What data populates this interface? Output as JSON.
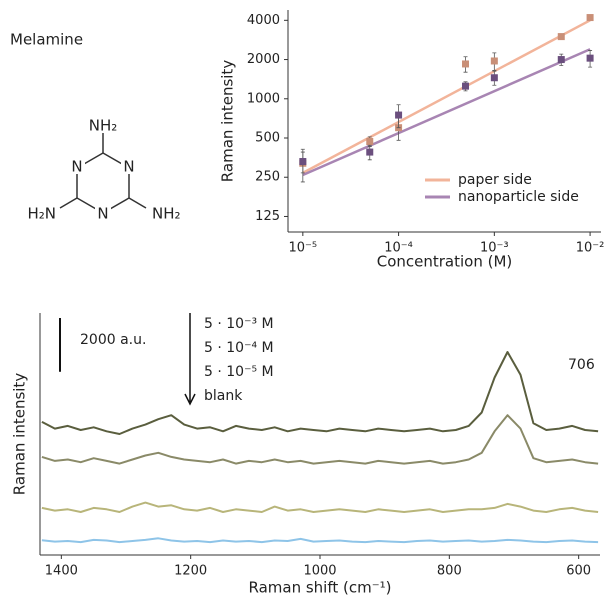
{
  "molecule": {
    "title": "Melamine",
    "top_group": "NH₂",
    "left_group": "H₂N",
    "right_group": "NH₂",
    "ring_atoms": [
      "N",
      "N",
      "N"
    ]
  },
  "chart_data": [
    {
      "type": "scatter",
      "log_x": true,
      "log_y": true,
      "xlabel": "Concentration (M)",
      "ylabel": "Raman intensity",
      "x": [
        1e-05,
        5e-05,
        0.0001,
        0.0005,
        0.001,
        0.005,
        0.01
      ],
      "xlim": [
        7e-06,
        0.013
      ],
      "xticks": [
        {
          "value": 1e-05,
          "label": "10⁻⁵"
        },
        {
          "value": 0.0001,
          "label": "10⁻⁴"
        },
        {
          "value": 0.001,
          "label": "10⁻³"
        },
        {
          "value": 0.01,
          "label": "10⁻²"
        }
      ],
      "ylim": [
        95,
        4800
      ],
      "yticks": [
        125,
        250,
        500,
        1000,
        2000,
        4000
      ],
      "legend": "lower right",
      "series": [
        {
          "name": "paper side",
          "color": "#f2b49a",
          "marker_color": "#c98f77",
          "values": [
            320,
            470,
            600,
            1850,
            1950,
            3000,
            4200
          ],
          "errors": [
            90,
            40,
            120,
            250,
            300,
            150,
            150
          ],
          "fit_x": [
            1e-05,
            0.01
          ],
          "fit": [
            270,
            4000
          ]
        },
        {
          "name": "nanoparticle side",
          "color": "#a885b3",
          "marker_color": "#6b4f7e",
          "values": [
            330,
            390,
            750,
            1250,
            1450,
            2000,
            2050
          ],
          "errors": [
            60,
            50,
            150,
            100,
            180,
            200,
            300
          ],
          "fit_x": [
            1e-05,
            0.01
          ],
          "fit": [
            260,
            2400
          ]
        }
      ]
    },
    {
      "type": "line",
      "xlabel": "Raman shift (cm⁻¹)",
      "ylabel": "Raman intensity",
      "xlim": [
        1433,
        567
      ],
      "xticks": [
        1400,
        1200,
        1000,
        800,
        600
      ],
      "ylim": [
        0,
        9000
      ],
      "scale_bar": {
        "value": 2000,
        "label": "2000 a.u."
      },
      "annotation": "706",
      "x": [
        1430,
        1410,
        1390,
        1370,
        1350,
        1330,
        1310,
        1290,
        1270,
        1250,
        1230,
        1210,
        1190,
        1170,
        1150,
        1130,
        1110,
        1090,
        1070,
        1050,
        1030,
        1010,
        990,
        970,
        950,
        930,
        910,
        890,
        870,
        850,
        830,
        810,
        790,
        770,
        750,
        730,
        710,
        690,
        670,
        650,
        630,
        610,
        590,
        570
      ],
      "series": [
        {
          "name": "5 · 10⁻³ M",
          "color": "#5a5e3e",
          "values": [
            4950,
            4700,
            4800,
            4650,
            4750,
            4600,
            4500,
            4700,
            4850,
            5050,
            5200,
            4850,
            4700,
            4750,
            4600,
            4800,
            4700,
            4650,
            4750,
            4600,
            4700,
            4650,
            4600,
            4700,
            4650,
            4600,
            4700,
            4650,
            4600,
            4650,
            4700,
            4600,
            4650,
            4800,
            5300,
            6600,
            7550,
            6700,
            4900,
            4650,
            4700,
            4800,
            4650,
            4600
          ]
        },
        {
          "name": "5 · 10⁻⁴ M",
          "color": "#8a8a68",
          "values": [
            3650,
            3500,
            3550,
            3450,
            3600,
            3500,
            3400,
            3550,
            3700,
            3800,
            3650,
            3550,
            3500,
            3450,
            3550,
            3400,
            3500,
            3450,
            3550,
            3450,
            3500,
            3400,
            3450,
            3500,
            3450,
            3400,
            3500,
            3450,
            3400,
            3450,
            3500,
            3400,
            3450,
            3550,
            3800,
            4600,
            5200,
            4700,
            3600,
            3450,
            3500,
            3550,
            3450,
            3400
          ]
        },
        {
          "name": "5 · 10⁻⁵ M",
          "color": "#b8b57a",
          "values": [
            1750,
            1650,
            1700,
            1600,
            1750,
            1700,
            1600,
            1800,
            1950,
            1800,
            1850,
            1700,
            1650,
            1750,
            1600,
            1700,
            1650,
            1600,
            1800,
            1650,
            1700,
            1600,
            1650,
            1700,
            1650,
            1600,
            1700,
            1650,
            1600,
            1650,
            1700,
            1600,
            1650,
            1700,
            1700,
            1750,
            1900,
            1800,
            1650,
            1600,
            1700,
            1750,
            1650,
            1600
          ]
        },
        {
          "name": "blank",
          "color": "#8ec4e8",
          "values": [
            550,
            500,
            520,
            480,
            560,
            540,
            480,
            520,
            560,
            620,
            540,
            500,
            520,
            480,
            540,
            500,
            520,
            480,
            540,
            520,
            600,
            500,
            520,
            540,
            500,
            480,
            520,
            500,
            480,
            520,
            540,
            500,
            520,
            540,
            500,
            520,
            560,
            540,
            500,
            480,
            520,
            540,
            500,
            480
          ]
        }
      ]
    }
  ]
}
